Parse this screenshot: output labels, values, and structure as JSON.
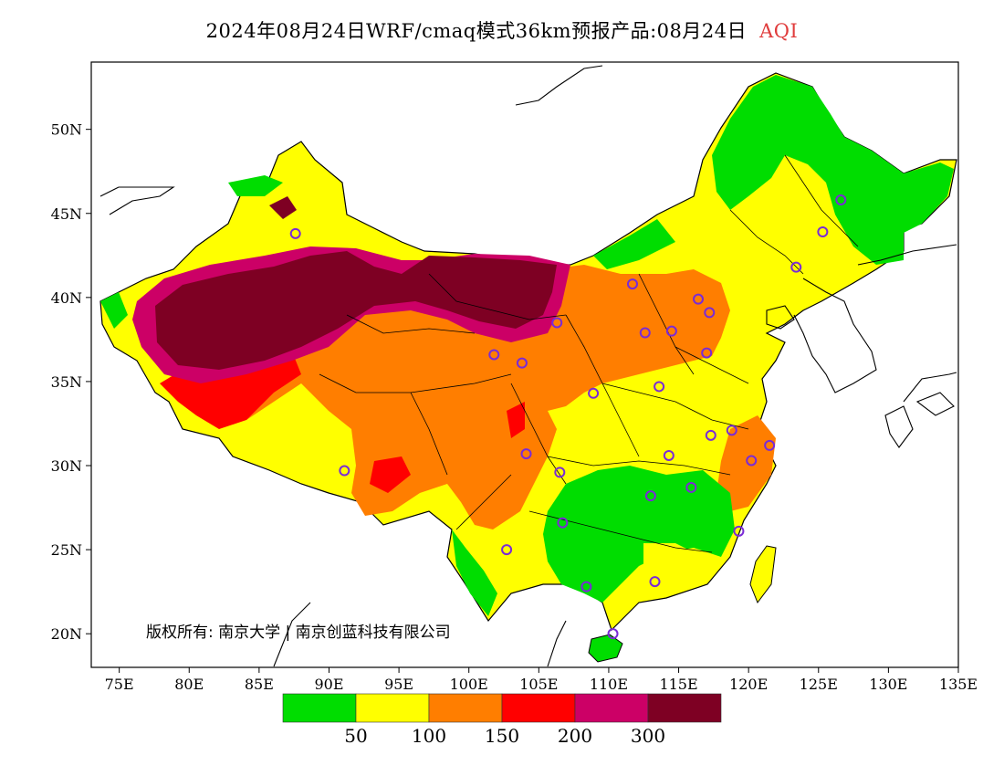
{
  "title": {
    "main": "2024年08月24日WRF/cmaq模式36km预报产品:08月24日",
    "pollutant": "AQI",
    "pollutant_color": "#e03c3c"
  },
  "axes": {
    "x_ticks": [
      "75E",
      "80E",
      "85E",
      "90E",
      "95E",
      "100E",
      "105E",
      "110E",
      "115E",
      "120E",
      "125E",
      "130E",
      "135E"
    ],
    "y_ticks": [
      "50N",
      "45N",
      "40N",
      "35N",
      "30N",
      "25N",
      "20N"
    ]
  },
  "copyright": "版权所有: 南京大学 | 南京创蓝科技有限公司",
  "legend": {
    "colors": [
      "#00dd00",
      "#ffff00",
      "#ff7e00",
      "#ff0000",
      "#cc0066",
      "#7e0023"
    ],
    "labels": [
      "50",
      "100",
      "150",
      "200",
      "300"
    ]
  },
  "chart_data": {
    "type": "heatmap",
    "title": "2024年08月24日WRF/cmaq模式36km预报产品:08月24日 AQI",
    "xlabel": "",
    "ylabel": "",
    "xlim": [
      73,
      135
    ],
    "ylim": [
      18,
      54
    ],
    "x_ticks": [
      75,
      80,
      85,
      90,
      95,
      100,
      105,
      110,
      115,
      120,
      125,
      130,
      135
    ],
    "y_ticks": [
      20,
      25,
      30,
      35,
      40,
      45,
      50
    ],
    "color_scale": {
      "breaks": [
        50,
        100,
        150,
        200,
        300
      ],
      "colors": [
        "#00dd00",
        "#ffff00",
        "#ff7e00",
        "#ff0000",
        "#cc0066",
        "#7e0023"
      ]
    },
    "regions_aqi_level": [
      {
        "region": "Tarim Basin",
        "level": "300+"
      },
      {
        "region": "Inner Mongolia west / Badain Jaran",
        "level": "300+"
      },
      {
        "region": "Qinghai-Tibet north",
        "level": "150-200"
      },
      {
        "region": "Central China / North China Plain",
        "level": "100-150"
      },
      {
        "region": "Northeast China",
        "level": "0-50"
      },
      {
        "region": "South China",
        "level": "0-50"
      }
    ],
    "stations": [
      {
        "lon": 87.6,
        "lat": 43.8
      },
      {
        "lon": 91.1,
        "lat": 29.7
      },
      {
        "lon": 101.8,
        "lat": 36.6
      },
      {
        "lon": 103.8,
        "lat": 36.1
      },
      {
        "lon": 106.3,
        "lat": 38.5
      },
      {
        "lon": 111.7,
        "lat": 40.8
      },
      {
        "lon": 112.6,
        "lat": 37.9
      },
      {
        "lon": 114.5,
        "lat": 38.0
      },
      {
        "lon": 116.4,
        "lat": 39.9
      },
      {
        "lon": 117.2,
        "lat": 39.1
      },
      {
        "lon": 123.4,
        "lat": 41.8
      },
      {
        "lon": 125.3,
        "lat": 43.9
      },
      {
        "lon": 126.6,
        "lat": 45.8
      },
      {
        "lon": 117.0,
        "lat": 36.7
      },
      {
        "lon": 113.6,
        "lat": 34.7
      },
      {
        "lon": 108.9,
        "lat": 34.3
      },
      {
        "lon": 104.1,
        "lat": 30.7
      },
      {
        "lon": 106.5,
        "lat": 29.6
      },
      {
        "lon": 114.3,
        "lat": 30.6
      },
      {
        "lon": 117.3,
        "lat": 31.8
      },
      {
        "lon": 118.8,
        "lat": 32.1
      },
      {
        "lon": 121.5,
        "lat": 31.2
      },
      {
        "lon": 120.2,
        "lat": 30.3
      },
      {
        "lon": 115.9,
        "lat": 28.7
      },
      {
        "lon": 113.0,
        "lat": 28.2
      },
      {
        "lon": 106.7,
        "lat": 26.6
      },
      {
        "lon": 102.7,
        "lat": 25.0
      },
      {
        "lon": 119.3,
        "lat": 26.1
      },
      {
        "lon": 113.3,
        "lat": 23.1
      },
      {
        "lon": 108.4,
        "lat": 22.8
      },
      {
        "lon": 110.3,
        "lat": 20.0
      }
    ]
  }
}
